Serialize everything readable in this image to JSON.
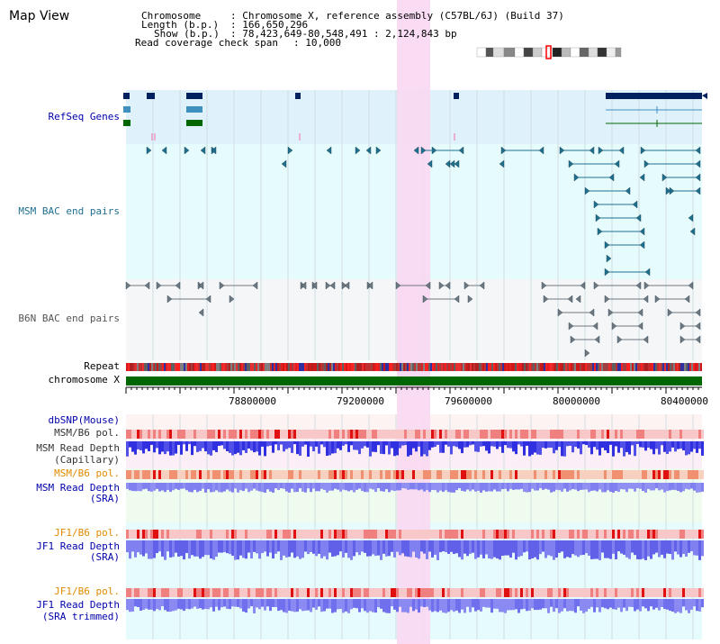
{
  "title": "Map View",
  "info": {
    "chromosome_key": "Chromosome",
    "chromosome_val": ": Chromosome X, reference assembly (C57BL/6J) (Build 37)",
    "length_key": "Length (b.p.)",
    "length_val": ": 166,650,296",
    "show_key": "Show (b.p.)",
    "show_val": ": 78,423,649-80,548,491 : 2,124,843 bp",
    "coverage_key": "Read coverage check span",
    "coverage_val": ": 10,000"
  },
  "tracks": {
    "refseq": "RefSeq Genes",
    "msm_bac": "MSM BAC end pairs",
    "b6n_bac": "B6N BAC end pairs",
    "repeat": "Repeat",
    "chromosome": "chromosome X",
    "dbsnp": "dbSNP(Mouse)",
    "msm_b6_pol_1": "MSM/B6 pol.",
    "msm_depth_cap_1": "MSM Read Depth",
    "msm_depth_cap_2": "(Capillary)",
    "msm_b6_pol_2": "MSM/B6 pol.",
    "msm_depth_sra_1": "MSM Read Depth",
    "msm_depth_sra_2": "(SRA)",
    "jf1_b6_pol_1": "JF1/B6 pol.",
    "jf1_depth_sra_1": "JF1 Read Depth",
    "jf1_depth_sra_2": "(SRA)",
    "jf1_b6_pol_2": "JF1/B6 pol.",
    "jf1_depth_trim_1": "JF1 Read Depth",
    "jf1_depth_trim_2": "(SRA trimmed)"
  },
  "axis_ticks": [
    "78800000",
    "79200000",
    "79600000",
    "80000000",
    "80400000"
  ],
  "colors": {
    "refseq_bg": "#dff1fb",
    "msm_bg": "#e6fbfb",
    "b6n_bg": "#f4f6f8",
    "highlight": "#f8d8f2",
    "gene_dark": "#002060",
    "gene_mid": "#3f8fbf",
    "gene_green": "#006600",
    "teal": "#1f6f8f",
    "chromosome_bar": "#006600",
    "depth_blue": "#3030e0",
    "depth_light": "#8080f0"
  }
}
